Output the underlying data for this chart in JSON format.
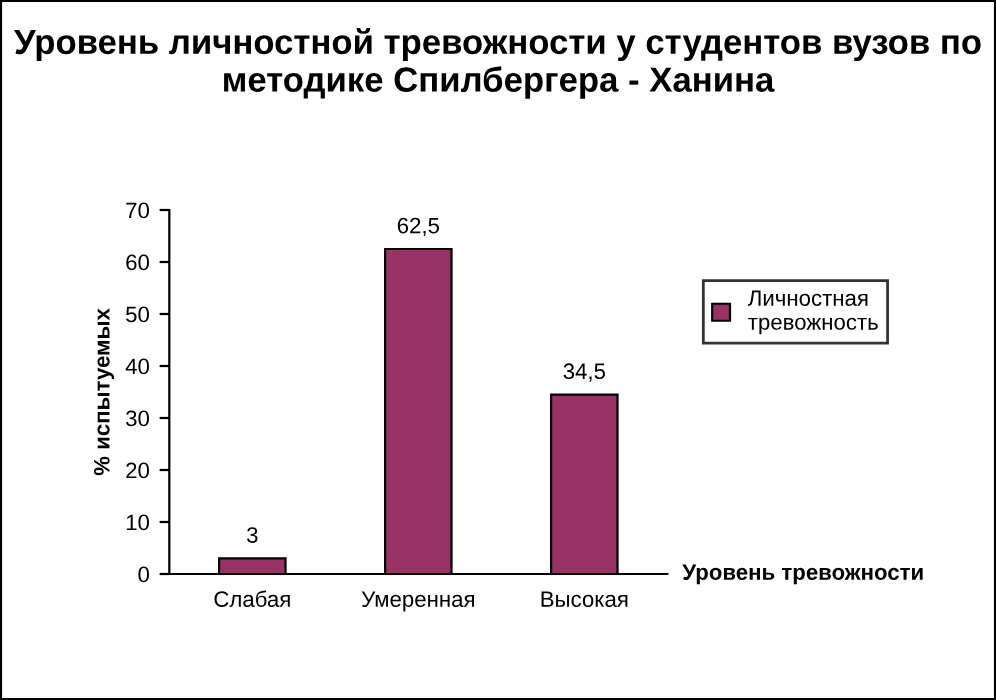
{
  "chart_data": {
    "type": "bar",
    "title": "Уровень личностной тревожности у студентов вузов по методике Спилбергера - Ханина",
    "xlabel": "Уровень тревожности",
    "ylabel": "% испытуемых",
    "categories": [
      "Слабая",
      "Умеренная",
      "Высокая"
    ],
    "series": [
      {
        "name": "Личностная тревожность",
        "color": "#993366",
        "values": [
          3,
          62.5,
          34.5
        ],
        "value_labels": [
          "3",
          "62,5",
          "34,5"
        ]
      }
    ],
    "ylim": [
      0,
      70
    ],
    "yticks": [
      0,
      10,
      20,
      30,
      40,
      50,
      60,
      70
    ],
    "grid": false,
    "legend": "right"
  }
}
